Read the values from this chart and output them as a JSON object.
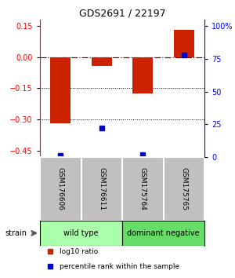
{
  "title": "GDS2691 / 22197",
  "samples": [
    "GSM176606",
    "GSM176611",
    "GSM175764",
    "GSM175765"
  ],
  "log10_ratio": [
    -0.32,
    -0.045,
    -0.175,
    0.13
  ],
  "percentile_rank": [
    1,
    22,
    2,
    78
  ],
  "ylim_left": [
    -0.48,
    0.18
  ],
  "ylim_right": [
    0,
    105
  ],
  "yticks_left": [
    0.15,
    0,
    -0.15,
    -0.3,
    -0.45
  ],
  "yticks_right": [
    100,
    75,
    50,
    25,
    0
  ],
  "bar_color": "#cc2200",
  "dot_color": "#0000cc",
  "dotted_lines": [
    -0.15,
    -0.3
  ],
  "groups": [
    {
      "label": "wild type",
      "samples": [
        0,
        1
      ],
      "color": "#aaffaa"
    },
    {
      "label": "dominant negative",
      "samples": [
        2,
        3
      ],
      "color": "#66dd66"
    }
  ],
  "legend_items": [
    {
      "color": "#cc2200",
      "label": "log10 ratio"
    },
    {
      "color": "#0000cc",
      "label": "percentile rank within the sample"
    }
  ],
  "strain_label": "strain",
  "sample_box_color": "#c0c0c0",
  "background_color": "#ffffff"
}
